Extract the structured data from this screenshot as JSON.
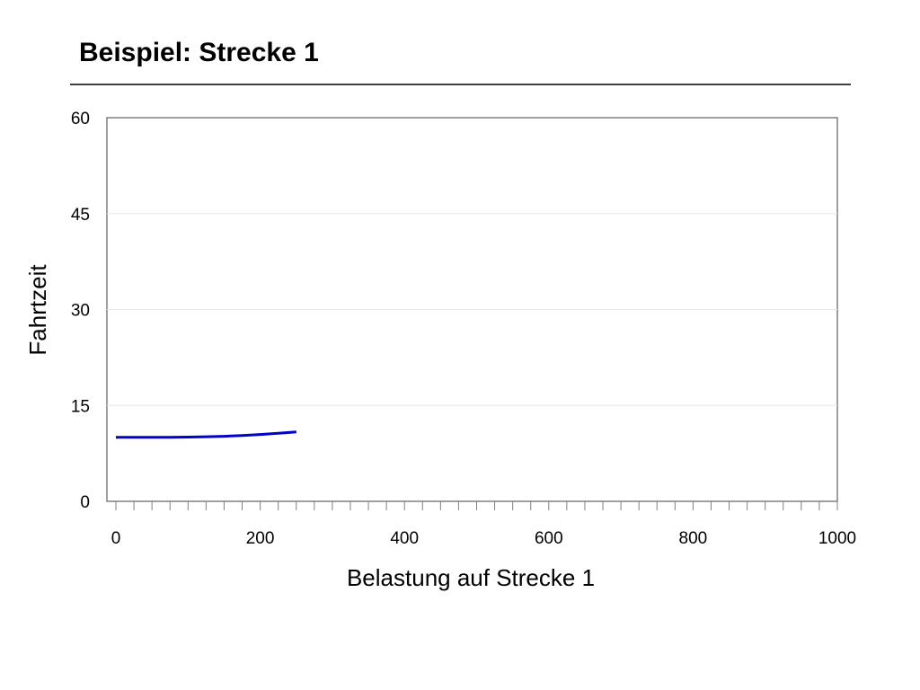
{
  "slide": {
    "title": "Beispiel: Strecke 1"
  },
  "chart_data": {
    "type": "line",
    "xlabel": "Belastung auf Strecke 1",
    "ylabel": "Fahrtzeit",
    "xlim": [
      0,
      1000
    ],
    "ylim": [
      0,
      60
    ],
    "x_ticks": [
      "0",
      "200",
      "400",
      "600",
      "800",
      "1000"
    ],
    "y_ticks": [
      "0",
      "15",
      "30",
      "45",
      "60"
    ],
    "grid": true,
    "legend": "none",
    "series": [
      {
        "color": "#0000CC",
        "x": [
          0,
          25,
          50,
          75,
          100,
          125,
          150,
          175,
          200,
          225,
          250
        ],
        "y": [
          10.0,
          10.0,
          10.0,
          10.02,
          10.05,
          10.1,
          10.18,
          10.3,
          10.45,
          10.63,
          10.85
        ]
      }
    ]
  }
}
